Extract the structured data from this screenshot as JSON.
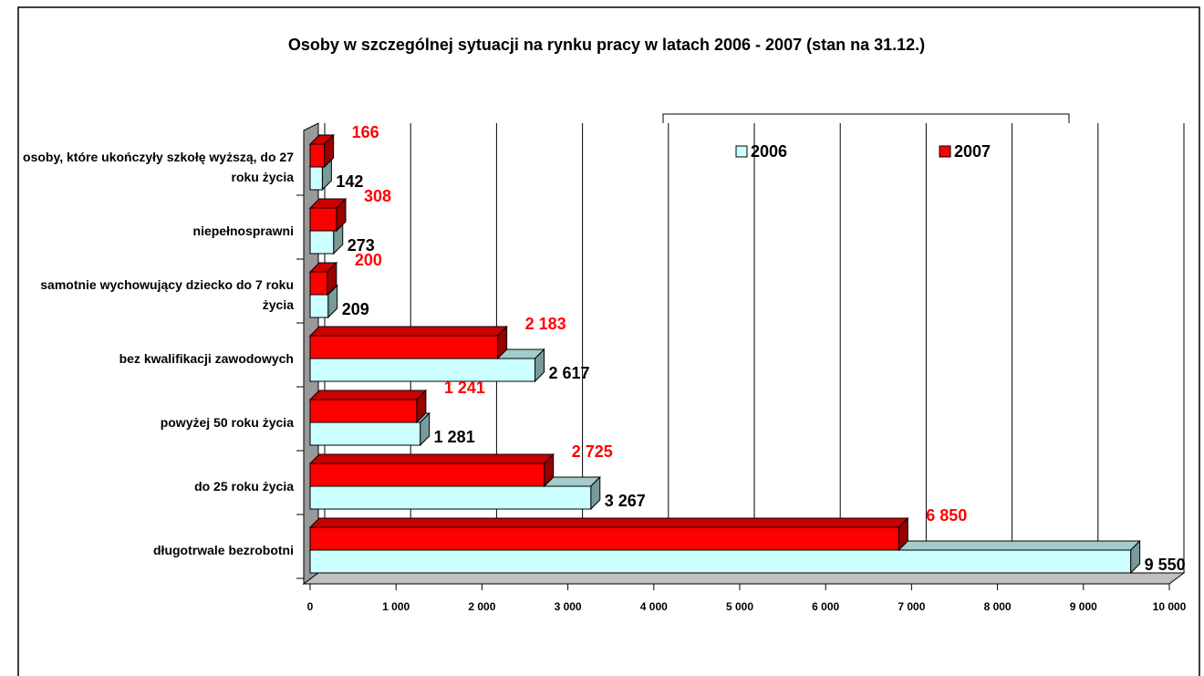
{
  "chart_data": {
    "type": "bar3d-horizontal",
    "title": "Osoby w szczególnej sytuacji na rynku pracy w latach 2006 - 2007 (stan na 31.12.)",
    "categories": [
      "osoby, które ukończyły szkołę wyższą, do 27 roku życia",
      "niepełnosprawni",
      "samotnie wychowujący dziecko do 7 roku życia",
      "bez kwalifikacji zawodowych",
      "powyżej 50 roku życia",
      "do 25 roku życia",
      "długotrwale bezrobotni"
    ],
    "series": [
      {
        "name": "2006",
        "color": "#ccffff",
        "label_color": "#000000",
        "values": [
          142,
          273,
          209,
          2617,
          1281,
          3267,
          9550
        ],
        "value_labels": [
          "142",
          "273",
          "209",
          "2 617",
          "1 281",
          "3 267",
          "9 550"
        ]
      },
      {
        "name": "2007",
        "color": "#ff0000",
        "label_color": "#ff0000",
        "values": [
          166,
          308,
          200,
          2183,
          1241,
          2725,
          6850
        ],
        "value_labels": [
          "166",
          "308",
          "200",
          "2 183",
          "1 241",
          "2 725",
          "6 850"
        ]
      }
    ],
    "xlim": [
      0,
      10000
    ],
    "xticks": [
      0,
      {
        "value": 1000,
        "label": "1 000"
      },
      {
        "value": 2000,
        "label": "2 000"
      },
      {
        "value": 3000,
        "label": "3 000"
      },
      {
        "value": 4000,
        "label": "4 000"
      },
      {
        "value": 5000,
        "label": "5 000"
      },
      {
        "value": 6000,
        "label": "6 000"
      },
      {
        "value": 7000,
        "label": "7 000"
      },
      {
        "value": 8000,
        "label": "8 000"
      },
      {
        "value": 9000,
        "label": "9 000"
      },
      {
        "value": 10000,
        "label": "10 000"
      }
    ],
    "grid": true
  }
}
